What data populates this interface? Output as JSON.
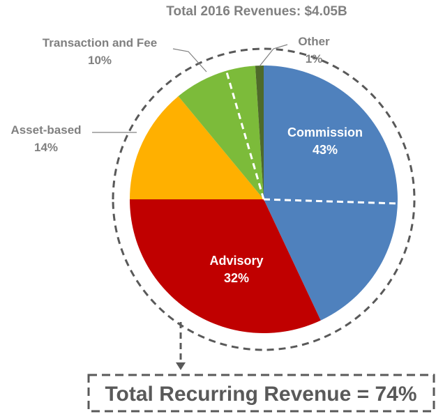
{
  "chart_data": {
    "type": "pie",
    "title": "Total 2016 Revenues: $4.05B",
    "slices": [
      {
        "label": "Commission",
        "value": 43,
        "value_label": "43%",
        "color": "#4F81BD"
      },
      {
        "label": "Advisory",
        "value": 32,
        "value_label": "32%",
        "color": "#C00000"
      },
      {
        "label": "Asset-based",
        "value": 14,
        "value_label": "14%",
        "color": "#FFB000"
      },
      {
        "label": "Transaction and Fee",
        "value": 10,
        "value_label": "10%",
        "color": "#7CBB3A"
      },
      {
        "label": "Other",
        "value": 1,
        "value_label": "1%",
        "color": "#4E6A2A"
      }
    ],
    "callout": "Total Recurring Revenue = 74%",
    "recurring_slices": [
      "Commission",
      "Advisory"
    ]
  }
}
